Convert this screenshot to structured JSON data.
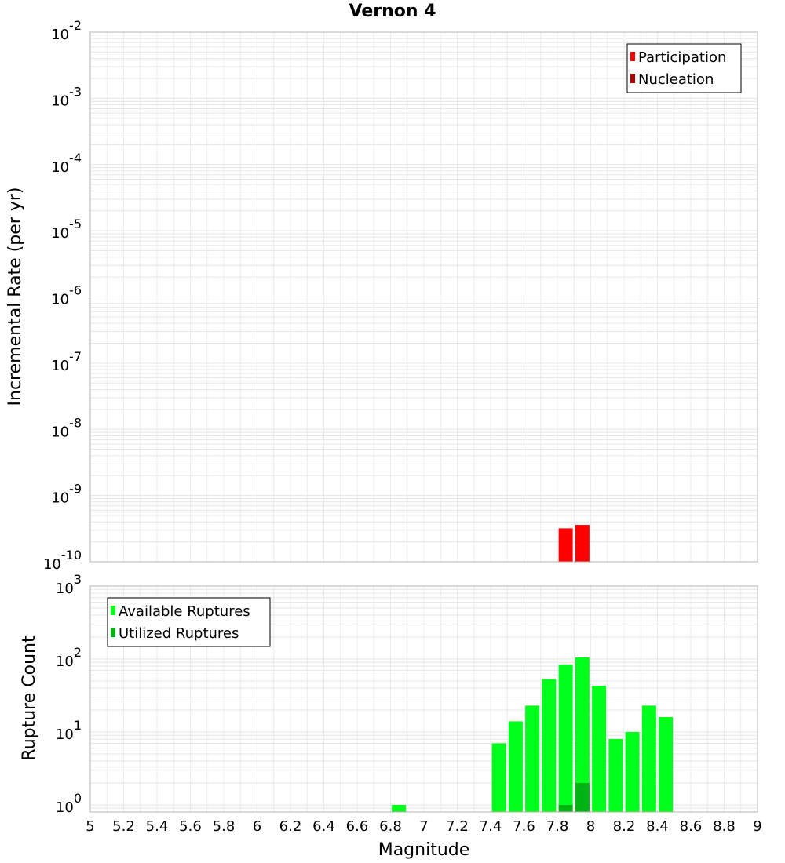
{
  "title": "Vernon 4",
  "xlabel": "Magnitude",
  "x_ticks": [
    "5",
    "5.2",
    "5.4",
    "5.6",
    "5.8",
    "6",
    "6.2",
    "6.4",
    "6.6",
    "6.8",
    "7",
    "7.2",
    "7.4",
    "7.6",
    "7.8",
    "8",
    "8.2",
    "8.4",
    "8.6",
    "8.8",
    "9"
  ],
  "chart_data": [
    {
      "type": "bar",
      "title": "Vernon 4",
      "xlabel": "Magnitude",
      "ylabel": "Incremental Rate (per yr)",
      "y_scale": "log",
      "xlim": [
        5,
        9
      ],
      "ylim": [
        1e-10,
        0.01
      ],
      "y_tick_exponents": [
        "-2",
        "-3",
        "-4",
        "-5",
        "-6",
        "-7",
        "-8",
        "-9",
        "-10"
      ],
      "grid": true,
      "legend_position": "top-right",
      "series": [
        {
          "name": "Participation",
          "color": "#ff0000",
          "x": [
            7.85,
            7.95
          ],
          "values": [
            3.2e-10,
            3.6e-10
          ]
        },
        {
          "name": "Nucleation",
          "color": "#b00000",
          "x": [],
          "values": []
        }
      ]
    },
    {
      "type": "bar",
      "xlabel": "Magnitude",
      "ylabel": "Rupture Count",
      "y_scale": "log",
      "xlim": [
        5,
        9
      ],
      "ylim": [
        0.8,
        1000
      ],
      "y_tick_exponents": [
        "3",
        "2",
        "1",
        "0"
      ],
      "grid": true,
      "legend_position": "top-left",
      "series": [
        {
          "name": "Available Ruptures",
          "color": "#00ff1a",
          "x": [
            6.85,
            7.45,
            7.55,
            7.65,
            7.75,
            7.85,
            7.95,
            8.05,
            8.15,
            8.25,
            8.35,
            8.45
          ],
          "values": [
            1,
            7,
            14,
            23,
            53,
            84,
            105,
            43,
            8,
            10,
            23,
            16
          ]
        },
        {
          "name": "Utilized Ruptures",
          "color": "#00b414",
          "x": [
            7.85,
            7.95
          ],
          "values": [
            1,
            2
          ]
        }
      ]
    }
  ]
}
